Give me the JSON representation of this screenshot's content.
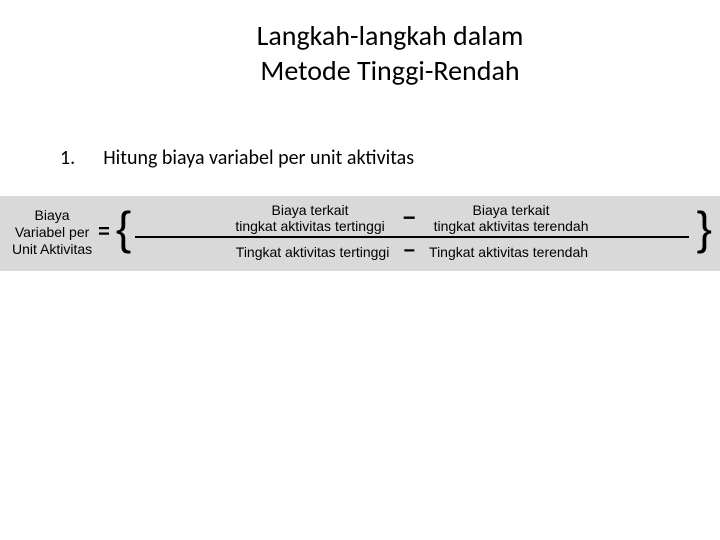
{
  "title": {
    "line1": "Langkah-langkah dalam",
    "line2": "Metode Tinggi-Rendah"
  },
  "step": {
    "number": "1.",
    "text": "Hitung biaya variabel per unit aktivitas"
  },
  "formula": {
    "lhs_line1": "Biaya",
    "lhs_line2": "Variabel per",
    "lhs_line3": "Unit Aktivitas",
    "eq": "=",
    "open_brace": "{",
    "close_brace": "}",
    "num_left_line1": "Biaya terkait",
    "num_left_line2": "tingkat aktivitas tertinggi",
    "num_minus": "−",
    "num_right_line1": "Biaya terkait",
    "num_right_line2": "tingkat aktivitas terendah",
    "den_left": "Tingkat aktivitas tertinggi",
    "den_minus": "−",
    "den_right": "Tingkat aktivitas terendah"
  },
  "colors": {
    "background": "#ffffff",
    "text": "#000000",
    "formula_bg": "#d9d9d9"
  }
}
